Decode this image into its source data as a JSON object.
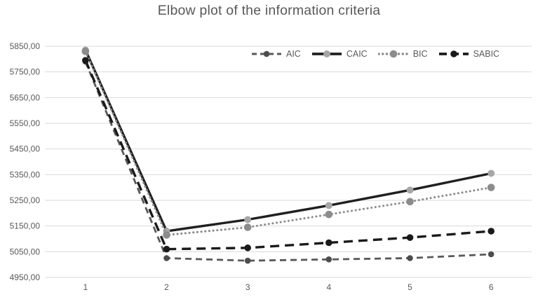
{
  "title": "Elbow plot of the information criteria",
  "chart_data": {
    "type": "line",
    "x_categories": [
      "1",
      "2",
      "3",
      "4",
      "5",
      "6"
    ],
    "y_ticks": [
      "5850,00",
      "5750,00",
      "5650,00",
      "5550,00",
      "5450,00",
      "5350,00",
      "5250,00",
      "5150,00",
      "5050,00",
      "4950,00"
    ],
    "ylim": [
      4950,
      5850
    ],
    "ytick_step": 100,
    "grid": "horizontal-only",
    "legend_position": "inside-top-right",
    "series": [
      {
        "name": "AIC",
        "style": "dashed",
        "color": "#595959",
        "marker_color": "#4d4d4d",
        "values": [
          5790,
          5025,
          5015,
          5020,
          5025,
          5040
        ]
      },
      {
        "name": "CAIC",
        "style": "solid",
        "color": "#1f1f1f",
        "marker_color": "#a6a6a6",
        "values": [
          5835,
          5130,
          5175,
          5230,
          5290,
          5355
        ]
      },
      {
        "name": "BIC",
        "style": "dotted",
        "color": "#8c8c8c",
        "marker_color": "#8c8c8c",
        "values": [
          5830,
          5115,
          5145,
          5195,
          5245,
          5300
        ]
      },
      {
        "name": "SABIC",
        "style": "long-dash",
        "color": "#1a1a1a",
        "marker_color": "#1a1a1a",
        "values": [
          5795,
          5060,
          5065,
          5085,
          5105,
          5130
        ]
      }
    ],
    "colors": {
      "grid": "#d9d9d9",
      "axis_text": "#595959",
      "title_text": "#595959",
      "background": "#ffffff"
    }
  }
}
